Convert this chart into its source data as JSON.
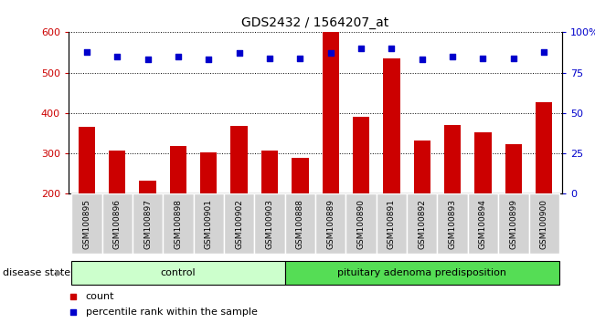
{
  "title": "GDS2432 / 1564207_at",
  "samples": [
    "GSM100895",
    "GSM100896",
    "GSM100897",
    "GSM100898",
    "GSM100901",
    "GSM100902",
    "GSM100903",
    "GSM100888",
    "GSM100889",
    "GSM100890",
    "GSM100891",
    "GSM100892",
    "GSM100893",
    "GSM100894",
    "GSM100899",
    "GSM100900"
  ],
  "counts": [
    365,
    307,
    232,
    318,
    303,
    368,
    308,
    290,
    600,
    390,
    535,
    332,
    370,
    352,
    324,
    427
  ],
  "percentiles": [
    88,
    85,
    83,
    85,
    83,
    87,
    84,
    84,
    87,
    90,
    90,
    83,
    85,
    84,
    84,
    88
  ],
  "control_count": 7,
  "disease_count": 9,
  "ylim_left": [
    200,
    600
  ],
  "ylim_right": [
    0,
    100
  ],
  "yticks_left": [
    200,
    300,
    400,
    500,
    600
  ],
  "yticks_right": [
    0,
    25,
    50,
    75,
    100
  ],
  "ytick_labels_right": [
    "0",
    "25",
    "50",
    "75",
    "100%"
  ],
  "bar_color": "#cc0000",
  "dot_color": "#0000cc",
  "control_label": "control",
  "disease_label": "pituitary adenoma predisposition",
  "disease_state_label": "disease state",
  "legend_count": "count",
  "legend_percentile": "percentile rank within the sample",
  "control_bg": "#ccffcc",
  "disease_bg": "#55dd55",
  "tick_color_left": "#cc0000",
  "tick_color_right": "#0000cc",
  "cell_bg": "#d3d3d3",
  "cell_edge": "#ffffff"
}
